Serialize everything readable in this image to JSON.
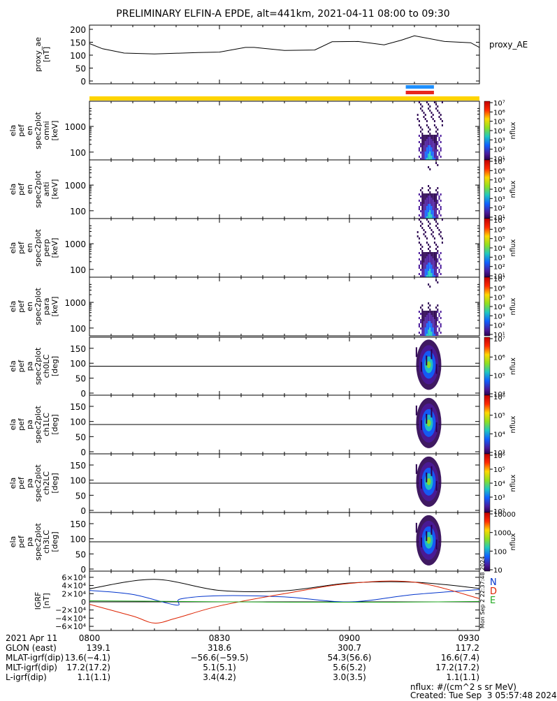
{
  "title": "PRELIMINARY ELFIN-A EPDE, alt=441km, 2021-04-11 08:00 to 09:30",
  "colors": {
    "axis": "#000000",
    "ae_line": "#000000",
    "bar_yellow": "#ffd400",
    "bar_blue": "#1e90ff",
    "bar_red": "#e8261f",
    "igrf_n": "#0033cc",
    "igrf_d": "#dd2200",
    "igrf_e": "#22aa22",
    "igrf_total": "#000000"
  },
  "top_bars": [
    "yellow full-width bar",
    "blue bar",
    "red bar"
  ],
  "panels": [
    {
      "id": "proxy_ae",
      "ylabel_lines": [
        "proxy_ae",
        "[nT]"
      ],
      "right_label": "proxy_AE",
      "yticks": [
        "200",
        "150",
        "100",
        "50",
        "0"
      ]
    },
    {
      "id": "en_omni",
      "ylabel_lines": [
        "ela",
        "pef",
        "en",
        "spec2plot",
        "omni",
        "[keV]"
      ],
      "yticks": [
        "1000",
        "100"
      ],
      "colorbar_label": "nflux",
      "colorbar_ticks": [
        "10⁷",
        "10⁶",
        "10⁵",
        "10⁴",
        "10³",
        "10²",
        "10¹"
      ]
    },
    {
      "id": "en_anti",
      "ylabel_lines": [
        "ela",
        "pef",
        "en",
        "spec2plot",
        "anti",
        "[keV]"
      ],
      "yticks": [
        "1000",
        "100"
      ],
      "colorbar_label": "nflux",
      "colorbar_ticks": [
        "10⁷",
        "10⁶",
        "10⁵",
        "10⁴",
        "10³",
        "10²",
        "10¹"
      ]
    },
    {
      "id": "en_perp",
      "ylabel_lines": [
        "ela",
        "pef",
        "en",
        "spec2plot",
        "perp",
        "[keV]"
      ],
      "yticks": [
        "1000",
        "100"
      ],
      "colorbar_label": "nflux",
      "colorbar_ticks": [
        "10⁷",
        "10⁶",
        "10⁵",
        "10⁴",
        "10³",
        "10²",
        "10¹"
      ]
    },
    {
      "id": "en_para",
      "ylabel_lines": [
        "ela",
        "pef",
        "en",
        "spec2plot",
        "para",
        "[keV]"
      ],
      "yticks": [
        "1000",
        "100"
      ],
      "colorbar_label": "nflux",
      "colorbar_ticks": [
        "10⁷",
        "10⁶",
        "10⁵",
        "10⁴",
        "10³",
        "10²",
        "10¹"
      ]
    },
    {
      "id": "pa_ch0",
      "ylabel_lines": [
        "ela",
        "pef",
        "pa",
        "spec2plot",
        "ch0LC",
        "[deg]"
      ],
      "yticks": [
        "150",
        "100",
        "50",
        "0"
      ],
      "colorbar_label": "nflux",
      "colorbar_ticks": [
        "10⁷",
        "10⁶",
        "10⁵",
        "10⁴"
      ]
    },
    {
      "id": "pa_ch1",
      "ylabel_lines": [
        "ela",
        "pef",
        "pa",
        "spec2plot",
        "ch1LC",
        "[deg]"
      ],
      "yticks": [
        "150",
        "100",
        "50",
        "0"
      ],
      "colorbar_label": "nflux",
      "colorbar_ticks": [
        "10⁶",
        "10⁵",
        "10⁴",
        "10³"
      ]
    },
    {
      "id": "pa_ch2",
      "ylabel_lines": [
        "ela",
        "pef",
        "pa",
        "spec2plot",
        "ch2LC",
        "[deg]"
      ],
      "yticks": [
        "150",
        "100",
        "50",
        "0"
      ],
      "colorbar_label": "nflux",
      "colorbar_ticks": [
        "10⁶",
        "10⁵",
        "10⁴",
        "10³",
        "10²"
      ]
    },
    {
      "id": "pa_ch3",
      "ylabel_lines": [
        "ela",
        "pef",
        "pa",
        "spec2plot",
        "ch3LC",
        "[deg]"
      ],
      "yticks": [
        "150",
        "100",
        "50",
        "0"
      ],
      "colorbar_label": "nflux",
      "colorbar_ticks": [
        "10000",
        "1000",
        "100",
        "10"
      ]
    },
    {
      "id": "igrf",
      "ylabel_lines": [
        "IGRF",
        "[nT]"
      ],
      "yticks": [
        "6×10⁴",
        "4×10⁴",
        "2×10⁴",
        "0",
        "−2×10⁴",
        "−4×10⁴",
        "−6×10⁴"
      ],
      "legend": [
        "N",
        "D",
        "E"
      ],
      "side_stamp": "Mon Sep  2 22:37:48 2024"
    }
  ],
  "chart_data": [
    {
      "type": "line",
      "name": "proxy_AE",
      "x_unit": "minutes since 08:00 UT",
      "x": [
        0,
        3,
        8,
        15,
        25,
        30,
        36,
        38,
        45,
        52,
        56,
        62,
        68,
        72,
        75,
        82,
        88,
        90
      ],
      "y": [
        145,
        125,
        108,
        105,
        110,
        112,
        130,
        130,
        118,
        120,
        152,
        153,
        140,
        158,
        175,
        153,
        148,
        130
      ],
      "ylim": [
        0,
        200
      ]
    },
    {
      "type": "heatmap",
      "name": "energy spectrograms (omni, anti, perp, para)",
      "x_range_minutes": [
        75.6,
        81.6
      ],
      "ylim_keV": [
        60,
        7000
      ],
      "z_label": "nflux",
      "z_range": [
        "10¹",
        "10⁷"
      ]
    },
    {
      "type": "heatmap",
      "name": "pitch-angle spectrograms (ch0LC–ch3LC)",
      "x_range_minutes": [
        75.6,
        81.6
      ],
      "ylim_deg": [
        0,
        180
      ],
      "z_label": "nflux",
      "center_deg": 95
    },
    {
      "type": "line",
      "name": "IGRF",
      "x_unit": "minutes since 08:00 UT",
      "ylim": [
        -65000,
        70000
      ],
      "series": [
        {
          "name": "total",
          "x": [
            0,
            15,
            30,
            45,
            60,
            75,
            90
          ],
          "y": [
            32000,
            55000,
            28000,
            27000,
            46000,
            48000,
            33000
          ]
        },
        {
          "name": "N",
          "x": [
            0,
            10,
            20,
            21,
            30,
            45,
            60,
            75,
            90
          ],
          "y": [
            28000,
            18000,
            -8000,
            7000,
            15000,
            12000,
            0,
            18000,
            30000
          ]
        },
        {
          "name": "D",
          "x": [
            0,
            10,
            15,
            20,
            30,
            45,
            60,
            75,
            90
          ],
          "y": [
            -6000,
            -35000,
            -52000,
            -40000,
            -10000,
            20000,
            45000,
            48000,
            8000
          ]
        },
        {
          "name": "E",
          "x": [
            0,
            20,
            40,
            60,
            75,
            90
          ],
          "y": [
            2500,
            1000,
            -500,
            -1000,
            -500,
            1000
          ]
        }
      ]
    }
  ],
  "time_axis": {
    "date": "2021 Apr 11",
    "ticks": [
      "0800",
      "0830",
      "0900",
      "0930"
    ]
  },
  "footer_rows": [
    {
      "label": "GLON (east)",
      "values": [
        "139.1",
        "318.6",
        "300.7",
        "117.2"
      ]
    },
    {
      "label": "MLAT-igrf(dip)",
      "values": [
        "13.6(−4.1)",
        "−56.6(−59.5)",
        "54.3(56.6)",
        "16.6(7.4)"
      ]
    },
    {
      "label": "MLT-igrf(dip)",
      "values": [
        "17.2(17.2)",
        "5.1(5.1)",
        "5.6(5.2)",
        "17.2(17.2)"
      ]
    },
    {
      "label": "L-igrf(dip)",
      "values": [
        "1.1(1.1)",
        "3.4(4.2)",
        "3.0(3.5)",
        "1.1(1.1)"
      ]
    }
  ],
  "units_note": "nflux: #/(cm^2 s sr MeV)",
  "created": "Created: Tue Sep  3 05:57:48 2024"
}
